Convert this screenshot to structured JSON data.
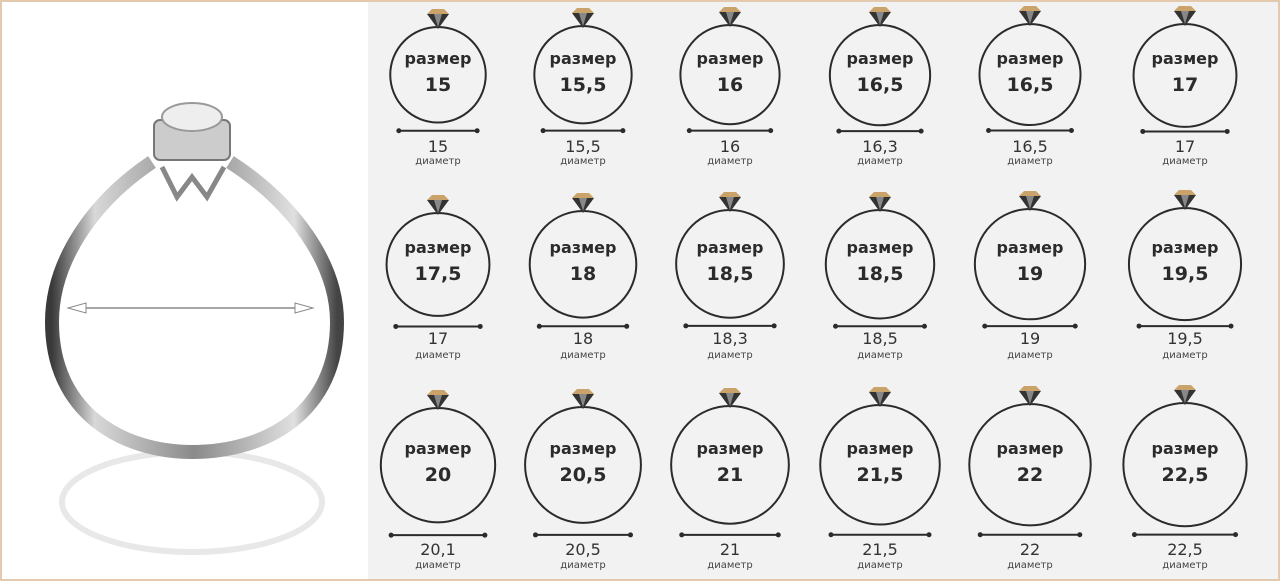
{
  "size_label": "размер",
  "diameter_label": "диаметр",
  "colors": {
    "ring": "#2b2b2b",
    "gem_dark": "#333333",
    "gem_gold": "#c9a36a",
    "panel": "#f2f2f2",
    "border": "#e3c9ad"
  },
  "icons": {
    "cell": "diamond-ring-icon",
    "photo": "ring-photo-with-diameter-arrow"
  },
  "rows": [
    [
      {
        "size": "15",
        "diameter": "15"
      },
      {
        "size": "15,5",
        "diameter": "15,5"
      },
      {
        "size": "16",
        "diameter": "16"
      },
      {
        "size": "16,5",
        "diameter": "16,3"
      },
      {
        "size": "16,5",
        "diameter": "16,5"
      },
      {
        "size": "17",
        "diameter": "17"
      }
    ],
    [
      {
        "size": "17,5",
        "diameter": "17"
      },
      {
        "size": "18",
        "diameter": "18"
      },
      {
        "size": "18,5",
        "diameter": "18,3"
      },
      {
        "size": "18,5",
        "diameter": "18,5"
      },
      {
        "size": "19",
        "diameter": "19"
      },
      {
        "size": "19,5",
        "diameter": "19,5"
      }
    ],
    [
      {
        "size": "20",
        "diameter": "20,1"
      },
      {
        "size": "20,5",
        "diameter": "20,5"
      },
      {
        "size": "21",
        "diameter": "21"
      },
      {
        "size": "21,5",
        "diameter": "21,5"
      },
      {
        "size": "22",
        "diameter": "22"
      },
      {
        "size": "22,5",
        "diameter": "22,5"
      }
    ]
  ]
}
